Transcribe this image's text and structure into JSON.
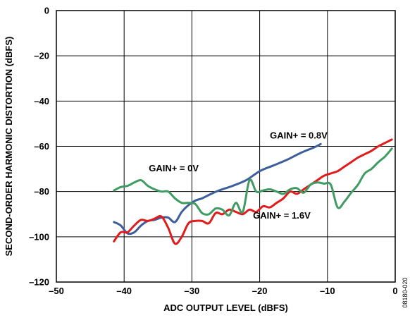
{
  "chart_data": {
    "type": "line",
    "xlabel": "ADC OUTPUT LEVEL (dBFS)",
    "ylabel": "SECOND-ORDER HARMONIC DISTORTION (dBFS)",
    "xlim": [
      -50,
      0
    ],
    "ylim": [
      -120,
      0
    ],
    "xticks": [
      "–50",
      "–40",
      "–30",
      "–20",
      "–10",
      "0"
    ],
    "yticks": [
      "0",
      "–20",
      "–40",
      "–60",
      "–80",
      "–100",
      "–120"
    ],
    "grid": true,
    "figure_id": "08180-020",
    "colors": {
      "gain_0v": "#3c5f9c",
      "gain_0_8v": "#e11b1b",
      "gain_1_6v": "#3f9b62"
    },
    "annotations": [
      {
        "text": "GAIN+ = 0.8V",
        "series": "GAIN+ = 0.8V",
        "x": -10,
        "y": -56.5
      },
      {
        "text": "GAIN+ = 0V",
        "series": "GAIN+ = 0V",
        "x": -29,
        "y": -71
      },
      {
        "text": "GAIN+ = 1.6V",
        "series": "GAIN+ = 1.6V",
        "x": -12.5,
        "y": -92
      }
    ],
    "series": [
      {
        "name": "GAIN+ = 0V",
        "color": "#3c5f9c",
        "x": [
          -41.5,
          -40.5,
          -39.5,
          -38.5,
          -37.5,
          -36.5,
          -35.5,
          -34.5,
          -33.5,
          -32.5,
          -31.5,
          -30.5,
          -29.5,
          -28.5,
          -27.5,
          -26,
          -24,
          -22,
          -20,
          -18,
          -16,
          -14,
          -12,
          -11
        ],
        "y": [
          -93.5,
          -95,
          -98.5,
          -98,
          -95,
          -93,
          -92.5,
          -91.5,
          -91.5,
          -93.5,
          -89,
          -86,
          -84,
          -83,
          -81.5,
          -79.5,
          -77.5,
          -75,
          -71,
          -68.5,
          -66,
          -63,
          -60.5,
          -59
        ]
      },
      {
        "name": "GAIN+ = 0.8V",
        "color": "#e11b1b",
        "x": [
          -41.5,
          -40.5,
          -39.5,
          -38.5,
          -37.5,
          -36.5,
          -35.5,
          -34.5,
          -33.5,
          -32.5,
          -31.5,
          -30.5,
          -29.5,
          -28.5,
          -27.5,
          -26.5,
          -25.5,
          -24.5,
          -23.5,
          -22.5,
          -21.5,
          -20.5,
          -19.5,
          -18.5,
          -17.5,
          -16.5,
          -15.5,
          -14.5,
          -13.5,
          -12.5,
          -11.5,
          -10.5,
          -9.5,
          -8.5,
          -7.5,
          -6.5,
          -5.5,
          -4.5,
          -3.5,
          -2.5,
          -1.5,
          -0.5
        ],
        "y": [
          -102,
          -98,
          -98,
          -95,
          -92.5,
          -93,
          -92,
          -91,
          -96,
          -103,
          -100,
          -94,
          -93,
          -93,
          -94,
          -89.5,
          -90,
          -88,
          -89,
          -90,
          -88,
          -89,
          -86.5,
          -87,
          -85,
          -83,
          -80,
          -81,
          -79,
          -77,
          -75,
          -73,
          -72,
          -71,
          -69,
          -67,
          -65,
          -63.5,
          -62,
          -60,
          -58.5,
          -57
        ]
      },
      {
        "name": "GAIN+ = 1.6V",
        "color": "#3f9b62",
        "x": [
          -41.5,
          -40.5,
          -39.5,
          -38.5,
          -37.5,
          -36.5,
          -35.5,
          -34.5,
          -33.5,
          -32.5,
          -31.5,
          -30.5,
          -29.5,
          -28.5,
          -27.5,
          -26.5,
          -25.5,
          -24.5,
          -23.5,
          -22.5,
          -21.5,
          -20.5,
          -19.5,
          -18.5,
          -17.5,
          -16.5,
          -15.5,
          -14.5,
          -13.5,
          -12.5,
          -11.5,
          -10.5,
          -9.5,
          -8.5,
          -7.5,
          -6.5,
          -5.5,
          -4.5,
          -3.5,
          -2.5,
          -1.5,
          -0.5
        ],
        "y": [
          -79.5,
          -78,
          -77.5,
          -76,
          -75,
          -77.5,
          -79,
          -80,
          -80,
          -83,
          -85,
          -85,
          -85.5,
          -89.5,
          -90,
          -87.5,
          -88,
          -90.5,
          -85,
          -89,
          -75,
          -80,
          -79.5,
          -79,
          -80,
          -81,
          -79,
          -78.5,
          -80.5,
          -77,
          -76,
          -76.5,
          -77,
          -87,
          -84.5,
          -80.5,
          -77,
          -72,
          -70,
          -67,
          -64.5,
          -61
        ]
      }
    ]
  }
}
